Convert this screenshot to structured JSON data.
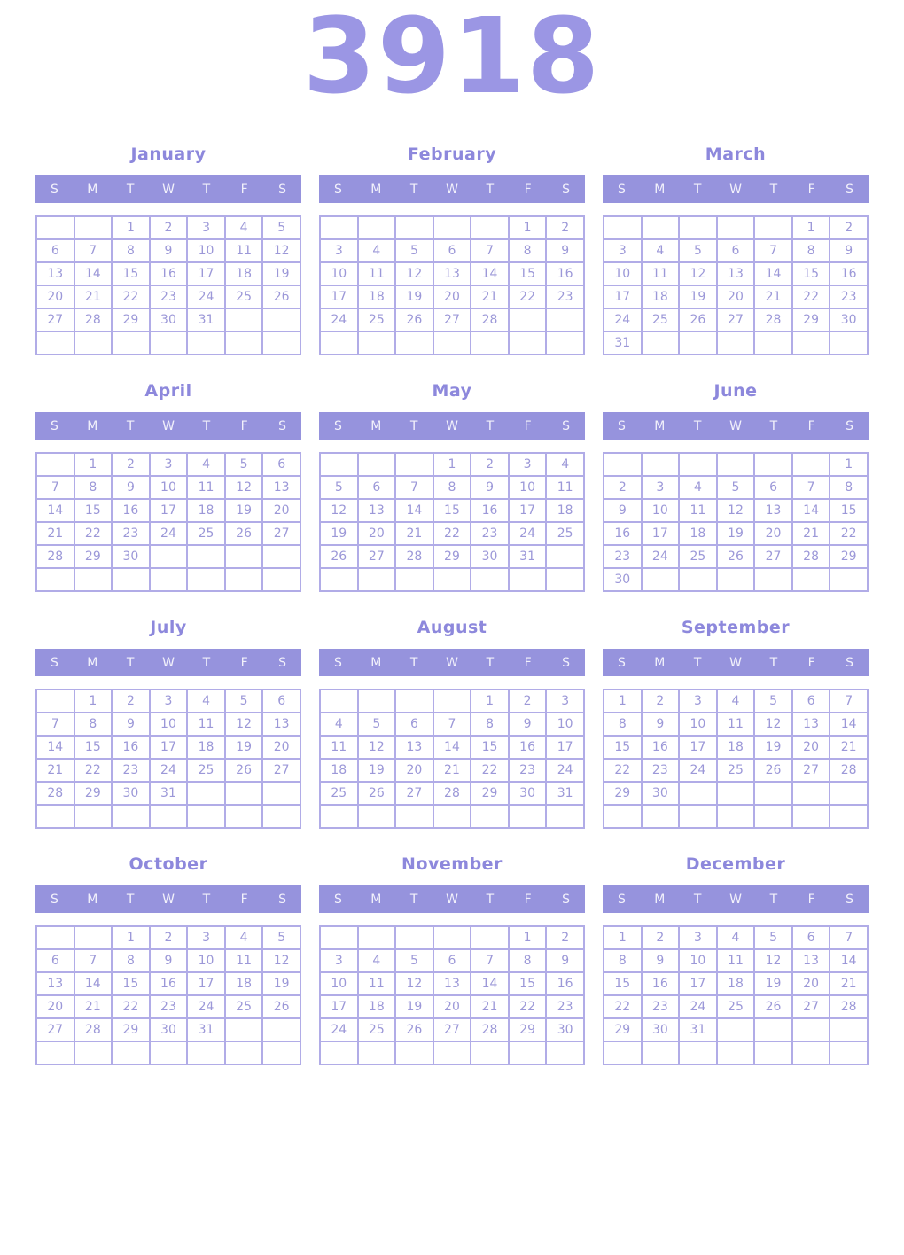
{
  "year": "3918",
  "weekdays": [
    "S",
    "M",
    "T",
    "W",
    "T",
    "F",
    "S"
  ],
  "colors": {
    "year_title": "#9b96e4",
    "month_title": "#8d88dc",
    "weekday_bar_bg": "#9693dd",
    "weekday_text": "#f2f1fb",
    "cell_border": "#b1ace7",
    "day_number": "#9c98d8",
    "page_bg": "#ffffff"
  },
  "months": [
    {
      "name": "January",
      "weeks": [
        [
          "",
          "",
          "1",
          "2",
          "3",
          "4",
          "5"
        ],
        [
          "6",
          "7",
          "8",
          "9",
          "10",
          "11",
          "12"
        ],
        [
          "13",
          "14",
          "15",
          "16",
          "17",
          "18",
          "19"
        ],
        [
          "20",
          "21",
          "22",
          "23",
          "24",
          "25",
          "26"
        ],
        [
          "27",
          "28",
          "29",
          "30",
          "31",
          "",
          ""
        ],
        [
          "",
          "",
          "",
          "",
          "",
          "",
          ""
        ]
      ]
    },
    {
      "name": "February",
      "weeks": [
        [
          "",
          "",
          "",
          "",
          "",
          "1",
          "2"
        ],
        [
          "3",
          "4",
          "5",
          "6",
          "7",
          "8",
          "9"
        ],
        [
          "10",
          "11",
          "12",
          "13",
          "14",
          "15",
          "16"
        ],
        [
          "17",
          "18",
          "19",
          "20",
          "21",
          "22",
          "23"
        ],
        [
          "24",
          "25",
          "26",
          "27",
          "28",
          "",
          ""
        ],
        [
          "",
          "",
          "",
          "",
          "",
          "",
          ""
        ]
      ]
    },
    {
      "name": "March",
      "weeks": [
        [
          "",
          "",
          "",
          "",
          "",
          "1",
          "2"
        ],
        [
          "3",
          "4",
          "5",
          "6",
          "7",
          "8",
          "9"
        ],
        [
          "10",
          "11",
          "12",
          "13",
          "14",
          "15",
          "16"
        ],
        [
          "17",
          "18",
          "19",
          "20",
          "21",
          "22",
          "23"
        ],
        [
          "24",
          "25",
          "26",
          "27",
          "28",
          "29",
          "30"
        ],
        [
          "31",
          "",
          "",
          "",
          "",
          "",
          ""
        ]
      ]
    },
    {
      "name": "April",
      "weeks": [
        [
          "",
          "1",
          "2",
          "3",
          "4",
          "5",
          "6"
        ],
        [
          "7",
          "8",
          "9",
          "10",
          "11",
          "12",
          "13"
        ],
        [
          "14",
          "15",
          "16",
          "17",
          "18",
          "19",
          "20"
        ],
        [
          "21",
          "22",
          "23",
          "24",
          "25",
          "26",
          "27"
        ],
        [
          "28",
          "29",
          "30",
          "",
          "",
          "",
          ""
        ],
        [
          "",
          "",
          "",
          "",
          "",
          "",
          ""
        ]
      ]
    },
    {
      "name": "May",
      "weeks": [
        [
          "",
          "",
          "",
          "1",
          "2",
          "3",
          "4"
        ],
        [
          "5",
          "6",
          "7",
          "8",
          "9",
          "10",
          "11"
        ],
        [
          "12",
          "13",
          "14",
          "15",
          "16",
          "17",
          "18"
        ],
        [
          "19",
          "20",
          "21",
          "22",
          "23",
          "24",
          "25"
        ],
        [
          "26",
          "27",
          "28",
          "29",
          "30",
          "31",
          ""
        ],
        [
          "",
          "",
          "",
          "",
          "",
          "",
          ""
        ]
      ]
    },
    {
      "name": "June",
      "weeks": [
        [
          "",
          "",
          "",
          "",
          "",
          "",
          "1"
        ],
        [
          "2",
          "3",
          "4",
          "5",
          "6",
          "7",
          "8"
        ],
        [
          "9",
          "10",
          "11",
          "12",
          "13",
          "14",
          "15"
        ],
        [
          "16",
          "17",
          "18",
          "19",
          "20",
          "21",
          "22"
        ],
        [
          "23",
          "24",
          "25",
          "26",
          "27",
          "28",
          "29"
        ],
        [
          "30",
          "",
          "",
          "",
          "",
          "",
          ""
        ]
      ]
    },
    {
      "name": "July",
      "weeks": [
        [
          "",
          "1",
          "2",
          "3",
          "4",
          "5",
          "6"
        ],
        [
          "7",
          "8",
          "9",
          "10",
          "11",
          "12",
          "13"
        ],
        [
          "14",
          "15",
          "16",
          "17",
          "18",
          "19",
          "20"
        ],
        [
          "21",
          "22",
          "23",
          "24",
          "25",
          "26",
          "27"
        ],
        [
          "28",
          "29",
          "30",
          "31",
          "",
          "",
          ""
        ],
        [
          "",
          "",
          "",
          "",
          "",
          "",
          ""
        ]
      ]
    },
    {
      "name": "August",
      "weeks": [
        [
          "",
          "",
          "",
          "",
          "1",
          "2",
          "3"
        ],
        [
          "4",
          "5",
          "6",
          "7",
          "8",
          "9",
          "10"
        ],
        [
          "11",
          "12",
          "13",
          "14",
          "15",
          "16",
          "17"
        ],
        [
          "18",
          "19",
          "20",
          "21",
          "22",
          "23",
          "24"
        ],
        [
          "25",
          "26",
          "27",
          "28",
          "29",
          "30",
          "31"
        ],
        [
          "",
          "",
          "",
          "",
          "",
          "",
          ""
        ]
      ]
    },
    {
      "name": "September",
      "weeks": [
        [
          "1",
          "2",
          "3",
          "4",
          "5",
          "6",
          "7"
        ],
        [
          "8",
          "9",
          "10",
          "11",
          "12",
          "13",
          "14"
        ],
        [
          "15",
          "16",
          "17",
          "18",
          "19",
          "20",
          "21"
        ],
        [
          "22",
          "23",
          "24",
          "25",
          "26",
          "27",
          "28"
        ],
        [
          "29",
          "30",
          "",
          "",
          "",
          "",
          ""
        ],
        [
          "",
          "",
          "",
          "",
          "",
          "",
          ""
        ]
      ]
    },
    {
      "name": "October",
      "weeks": [
        [
          "",
          "",
          "1",
          "2",
          "3",
          "4",
          "5"
        ],
        [
          "6",
          "7",
          "8",
          "9",
          "10",
          "11",
          "12"
        ],
        [
          "13",
          "14",
          "15",
          "16",
          "17",
          "18",
          "19"
        ],
        [
          "20",
          "21",
          "22",
          "23",
          "24",
          "25",
          "26"
        ],
        [
          "27",
          "28",
          "29",
          "30",
          "31",
          "",
          ""
        ],
        [
          "",
          "",
          "",
          "",
          "",
          "",
          ""
        ]
      ]
    },
    {
      "name": "November",
      "weeks": [
        [
          "",
          "",
          "",
          "",
          "",
          "1",
          "2"
        ],
        [
          "3",
          "4",
          "5",
          "6",
          "7",
          "8",
          "9"
        ],
        [
          "10",
          "11",
          "12",
          "13",
          "14",
          "15",
          "16"
        ],
        [
          "17",
          "18",
          "19",
          "20",
          "21",
          "22",
          "23"
        ],
        [
          "24",
          "25",
          "26",
          "27",
          "28",
          "29",
          "30"
        ],
        [
          "",
          "",
          "",
          "",
          "",
          "",
          ""
        ]
      ]
    },
    {
      "name": "December",
      "weeks": [
        [
          "1",
          "2",
          "3",
          "4",
          "5",
          "6",
          "7"
        ],
        [
          "8",
          "9",
          "10",
          "11",
          "12",
          "13",
          "14"
        ],
        [
          "15",
          "16",
          "17",
          "18",
          "19",
          "20",
          "21"
        ],
        [
          "22",
          "23",
          "24",
          "25",
          "26",
          "27",
          "28"
        ],
        [
          "29",
          "30",
          "31",
          "",
          "",
          "",
          ""
        ],
        [
          "",
          "",
          "",
          "",
          "",
          "",
          ""
        ]
      ]
    }
  ]
}
